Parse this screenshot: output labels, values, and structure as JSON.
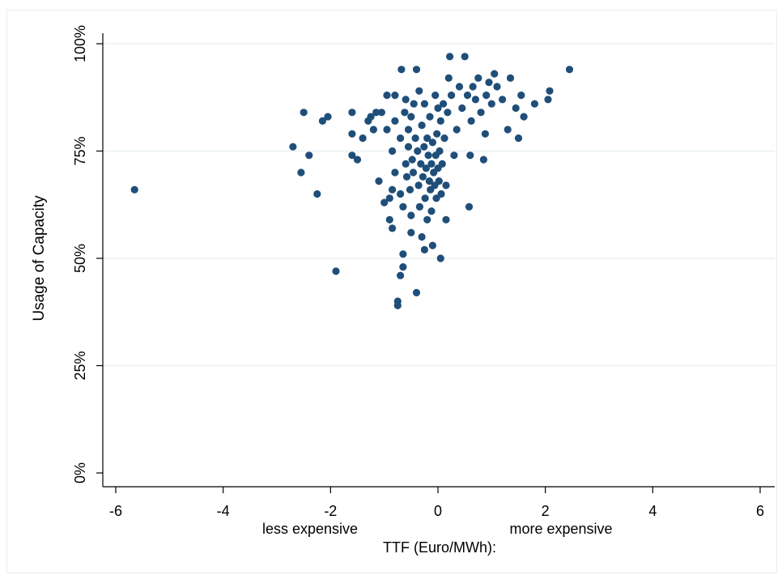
{
  "chart_data": {
    "type": "scatter",
    "title": "",
    "xlabel": "TTF (Euro/MWh):",
    "xlabel_left_note": "less expensive",
    "xlabel_right_note": "more expensive",
    "ylabel": "Usage of Capacity",
    "xlim": [
      -6.2,
      6.2
    ],
    "ylim": [
      -0.03,
      1.03
    ],
    "x_ticks": [
      -6,
      -4,
      -2,
      0,
      2,
      4,
      6
    ],
    "x_tick_labels": [
      "-6",
      "-4",
      "-2",
      "0",
      "2",
      "4",
      "6"
    ],
    "y_ticks": [
      0,
      0.25,
      0.5,
      0.75,
      1.0
    ],
    "y_tick_labels": [
      "0%",
      "25%",
      "50%",
      "75%",
      "100%"
    ],
    "grid": "horizontal",
    "marker_color": "#1f4e79",
    "points": [
      [
        -5.65,
        0.66
      ],
      [
        -2.7,
        0.76
      ],
      [
        -2.55,
        0.7
      ],
      [
        -2.5,
        0.84
      ],
      [
        -2.4,
        0.74
      ],
      [
        -2.25,
        0.65
      ],
      [
        -2.15,
        0.82
      ],
      [
        -2.05,
        0.83
      ],
      [
        -1.9,
        0.47
      ],
      [
        -1.6,
        0.84
      ],
      [
        -1.6,
        0.79
      ],
      [
        -1.6,
        0.74
      ],
      [
        -1.5,
        0.73
      ],
      [
        -1.4,
        0.78
      ],
      [
        -1.3,
        0.82
      ],
      [
        -1.25,
        0.83
      ],
      [
        -1.2,
        0.8
      ],
      [
        -1.15,
        0.84
      ],
      [
        -1.1,
        0.68
      ],
      [
        -1.05,
        0.84
      ],
      [
        -1.0,
        0.63
      ],
      [
        -0.95,
        0.88
      ],
      [
        -0.95,
        0.8
      ],
      [
        -0.9,
        0.64
      ],
      [
        -0.9,
        0.59
      ],
      [
        -0.85,
        0.75
      ],
      [
        -0.85,
        0.66
      ],
      [
        -0.85,
        0.57
      ],
      [
        -0.8,
        0.88
      ],
      [
        -0.8,
        0.82
      ],
      [
        -0.8,
        0.7
      ],
      [
        -0.75,
        0.4
      ],
      [
        -0.75,
        0.39
      ],
      [
        -0.7,
        0.46
      ],
      [
        -0.7,
        0.65
      ],
      [
        -0.7,
        0.78
      ],
      [
        -0.68,
        0.94
      ],
      [
        -0.65,
        0.48
      ],
      [
        -0.65,
        0.51
      ],
      [
        -0.65,
        0.62
      ],
      [
        -0.62,
        0.84
      ],
      [
        -0.6,
        0.87
      ],
      [
        -0.6,
        0.72
      ],
      [
        -0.58,
        0.69
      ],
      [
        -0.55,
        0.76
      ],
      [
        -0.55,
        0.8
      ],
      [
        -0.52,
        0.66
      ],
      [
        -0.5,
        0.56
      ],
      [
        -0.5,
        0.6
      ],
      [
        -0.5,
        0.83
      ],
      [
        -0.48,
        0.73
      ],
      [
        -0.46,
        0.7
      ],
      [
        -0.45,
        0.86
      ],
      [
        -0.42,
        0.78
      ],
      [
        -0.4,
        0.42
      ],
      [
        -0.4,
        0.94
      ],
      [
        -0.38,
        0.75
      ],
      [
        -0.36,
        0.67
      ],
      [
        -0.35,
        0.89
      ],
      [
        -0.34,
        0.62
      ],
      [
        -0.32,
        0.72
      ],
      [
        -0.3,
        0.55
      ],
      [
        -0.3,
        0.81
      ],
      [
        -0.28,
        0.69
      ],
      [
        -0.26,
        0.76
      ],
      [
        -0.25,
        0.52
      ],
      [
        -0.25,
        0.86
      ],
      [
        -0.24,
        0.64
      ],
      [
        -0.22,
        0.71
      ],
      [
        -0.2,
        0.59
      ],
      [
        -0.2,
        0.78
      ],
      [
        -0.18,
        0.74
      ],
      [
        -0.16,
        0.68
      ],
      [
        -0.15,
        0.83
      ],
      [
        -0.14,
        0.66
      ],
      [
        -0.12,
        0.72
      ],
      [
        -0.12,
        0.61
      ],
      [
        -0.1,
        0.77
      ],
      [
        -0.1,
        0.53
      ],
      [
        -0.08,
        0.7
      ],
      [
        -0.06,
        0.67
      ],
      [
        -0.05,
        0.88
      ],
      [
        -0.04,
        0.74
      ],
      [
        -0.03,
        0.64
      ],
      [
        -0.02,
        0.79
      ],
      [
        0.0,
        0.71
      ],
      [
        0.0,
        0.85
      ],
      [
        0.02,
        0.68
      ],
      [
        0.03,
        0.75
      ],
      [
        0.05,
        0.5
      ],
      [
        0.05,
        0.82
      ],
      [
        0.06,
        0.65
      ],
      [
        0.08,
        0.72
      ],
      [
        0.1,
        0.86
      ],
      [
        0.12,
        0.78
      ],
      [
        0.15,
        0.67
      ],
      [
        0.15,
        0.59
      ],
      [
        0.18,
        0.84
      ],
      [
        0.2,
        0.92
      ],
      [
        0.22,
        0.97
      ],
      [
        0.25,
        0.88
      ],
      [
        0.3,
        0.74
      ],
      [
        0.35,
        0.8
      ],
      [
        0.4,
        0.9
      ],
      [
        0.45,
        0.85
      ],
      [
        0.5,
        0.97
      ],
      [
        0.55,
        0.88
      ],
      [
        0.58,
        0.62
      ],
      [
        0.6,
        0.74
      ],
      [
        0.62,
        0.82
      ],
      [
        0.65,
        0.9
      ],
      [
        0.7,
        0.87
      ],
      [
        0.75,
        0.92
      ],
      [
        0.8,
        0.84
      ],
      [
        0.85,
        0.73
      ],
      [
        0.88,
        0.79
      ],
      [
        0.9,
        0.88
      ],
      [
        0.95,
        0.91
      ],
      [
        1.0,
        0.86
      ],
      [
        1.05,
        0.93
      ],
      [
        1.1,
        0.9
      ],
      [
        1.2,
        0.87
      ],
      [
        1.3,
        0.8
      ],
      [
        1.35,
        0.92
      ],
      [
        1.45,
        0.85
      ],
      [
        1.5,
        0.78
      ],
      [
        1.55,
        0.88
      ],
      [
        1.6,
        0.83
      ],
      [
        1.8,
        0.86
      ],
      [
        2.05,
        0.87
      ],
      [
        2.08,
        0.89
      ],
      [
        2.45,
        0.94
      ]
    ]
  }
}
